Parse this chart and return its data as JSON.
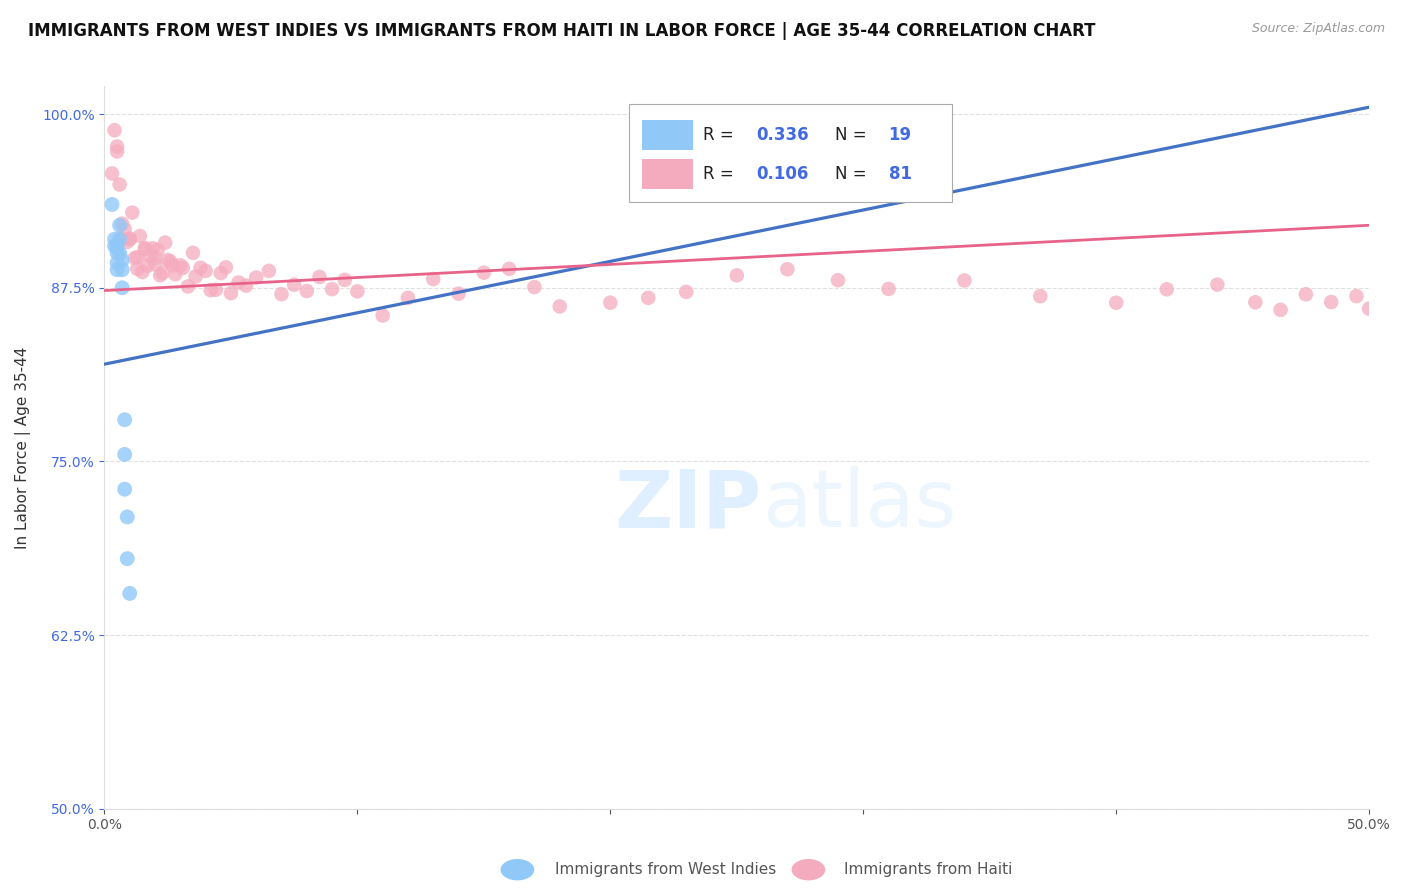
{
  "title": "IMMIGRANTS FROM WEST INDIES VS IMMIGRANTS FROM HAITI IN LABOR FORCE | AGE 35-44 CORRELATION CHART",
  "source": "Source: ZipAtlas.com",
  "ylabel": "In Labor Force | Age 35-44",
  "watermark": "ZIPatlas",
  "xlim": [
    0.0,
    0.5
  ],
  "ylim": [
    0.5,
    1.02
  ],
  "xtick_labels": [
    "0.0%",
    "",
    "",
    "",
    "",
    "50.0%"
  ],
  "ytick_labels": [
    "50.0%",
    "62.5%",
    "75.0%",
    "87.5%",
    "100.0%"
  ],
  "ytick_vals": [
    0.5,
    0.625,
    0.75,
    0.875,
    1.0
  ],
  "legend_blue_color": "#90C8F8",
  "legend_pink_color": "#F5ABBE",
  "line_blue_color": "#4472C4",
  "line_pink_color": "#E8638A",
  "r_value_color": "#4169E1",
  "grid_color": "#CCCCCC",
  "background_color": "#FFFFFF",
  "title_fontsize": 12,
  "axis_label_fontsize": 11,
  "tick_fontsize": 10,
  "west_indies_x": [
    0.003,
    0.004,
    0.004,
    0.005,
    0.005,
    0.005,
    0.005,
    0.006,
    0.006,
    0.006,
    0.007,
    0.007,
    0.007,
    0.008,
    0.008,
    0.008,
    0.009,
    0.009,
    0.01
  ],
  "west_indies_y": [
    0.935,
    0.91,
    0.905,
    0.905,
    0.9,
    0.893,
    0.888,
    0.92,
    0.91,
    0.9,
    0.895,
    0.888,
    0.875,
    0.78,
    0.755,
    0.73,
    0.71,
    0.68,
    0.655
  ],
  "haiti_x": [
    0.003,
    0.004,
    0.005,
    0.005,
    0.006,
    0.007,
    0.007,
    0.008,
    0.009,
    0.01,
    0.01,
    0.011,
    0.012,
    0.013,
    0.013,
    0.014,
    0.015,
    0.016,
    0.016,
    0.017,
    0.018,
    0.019,
    0.02,
    0.02,
    0.021,
    0.022,
    0.023,
    0.024,
    0.025,
    0.026,
    0.027,
    0.028,
    0.03,
    0.031,
    0.033,
    0.035,
    0.036,
    0.038,
    0.04,
    0.042,
    0.044,
    0.046,
    0.048,
    0.05,
    0.053,
    0.056,
    0.06,
    0.065,
    0.07,
    0.075,
    0.08,
    0.085,
    0.09,
    0.095,
    0.1,
    0.11,
    0.12,
    0.13,
    0.14,
    0.15,
    0.16,
    0.17,
    0.18,
    0.2,
    0.215,
    0.23,
    0.25,
    0.27,
    0.29,
    0.31,
    0.34,
    0.37,
    0.4,
    0.42,
    0.44,
    0.455,
    0.465,
    0.475,
    0.485,
    0.495,
    0.5
  ],
  "haiti_y": [
    0.97,
    0.98,
    0.975,
    0.97,
    0.935,
    0.92,
    0.91,
    0.93,
    0.915,
    0.91,
    0.905,
    0.92,
    0.9,
    0.91,
    0.895,
    0.9,
    0.895,
    0.905,
    0.89,
    0.905,
    0.895,
    0.89,
    0.9,
    0.895,
    0.89,
    0.895,
    0.885,
    0.9,
    0.89,
    0.895,
    0.9,
    0.885,
    0.895,
    0.89,
    0.88,
    0.89,
    0.875,
    0.895,
    0.885,
    0.88,
    0.875,
    0.89,
    0.885,
    0.875,
    0.88,
    0.87,
    0.885,
    0.875,
    0.88,
    0.87,
    0.875,
    0.885,
    0.87,
    0.88,
    0.875,
    0.87,
    0.88,
    0.875,
    0.87,
    0.88,
    0.875,
    0.87,
    0.875,
    0.87,
    0.865,
    0.88,
    0.87,
    0.875,
    0.87,
    0.875,
    0.87,
    0.88,
    0.87,
    0.875,
    0.87,
    0.865,
    0.87,
    0.875,
    0.87,
    0.875,
    0.87
  ],
  "blue_line_x0": 0.0,
  "blue_line_y0": 0.82,
  "blue_line_x1": 0.5,
  "blue_line_y1": 1.005,
  "pink_line_x0": 0.0,
  "pink_line_y0": 0.873,
  "pink_line_x1": 0.5,
  "pink_line_y1": 0.92
}
